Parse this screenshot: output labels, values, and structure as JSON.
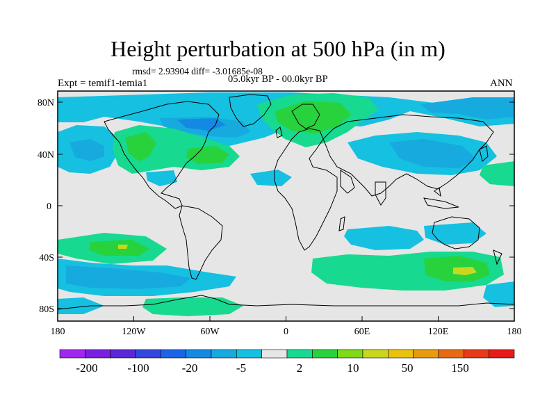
{
  "title": "Height perturbation at 500 hPa (in m)",
  "stats": "rmsd= 2.93904 diff= -3.01685e-08",
  "period": "05.0kyr BP - 00.0kyr BP",
  "experiment": "Expt = temif1-temia1",
  "season": "ANN",
  "lat_ticks": [
    "80N",
    "40N",
    "0",
    "40S",
    "80S"
  ],
  "lon_ticks": [
    "180",
    "120W",
    "60W",
    "0",
    "60E",
    "120E",
    "180"
  ],
  "colorbar": {
    "labels": [
      "-200",
      "-100",
      "-20",
      "-5",
      "2",
      "10",
      "50",
      "150"
    ],
    "colors": [
      "#9f27ee",
      "#7a20e0",
      "#5a28d8",
      "#3347dc",
      "#1c64e6",
      "#1489e3",
      "#16aadf",
      "#16c0e0",
      "#e6e6e6",
      "#17d98f",
      "#28d23d",
      "#7fd818",
      "#c9d81e",
      "#e8c20f",
      "#e89b10",
      "#e86b14",
      "#e8391a",
      "#e81a1a"
    ]
  },
  "map_colors": {
    "neutral": "#e6e6e6",
    "light_blue": "#16c0e0",
    "mid_blue": "#16aadf",
    "dark_blue": "#1489e3",
    "light_green": "#17d98f",
    "green": "#28d23d",
    "yellow_green": "#c9d81e",
    "coast": "#000000"
  }
}
